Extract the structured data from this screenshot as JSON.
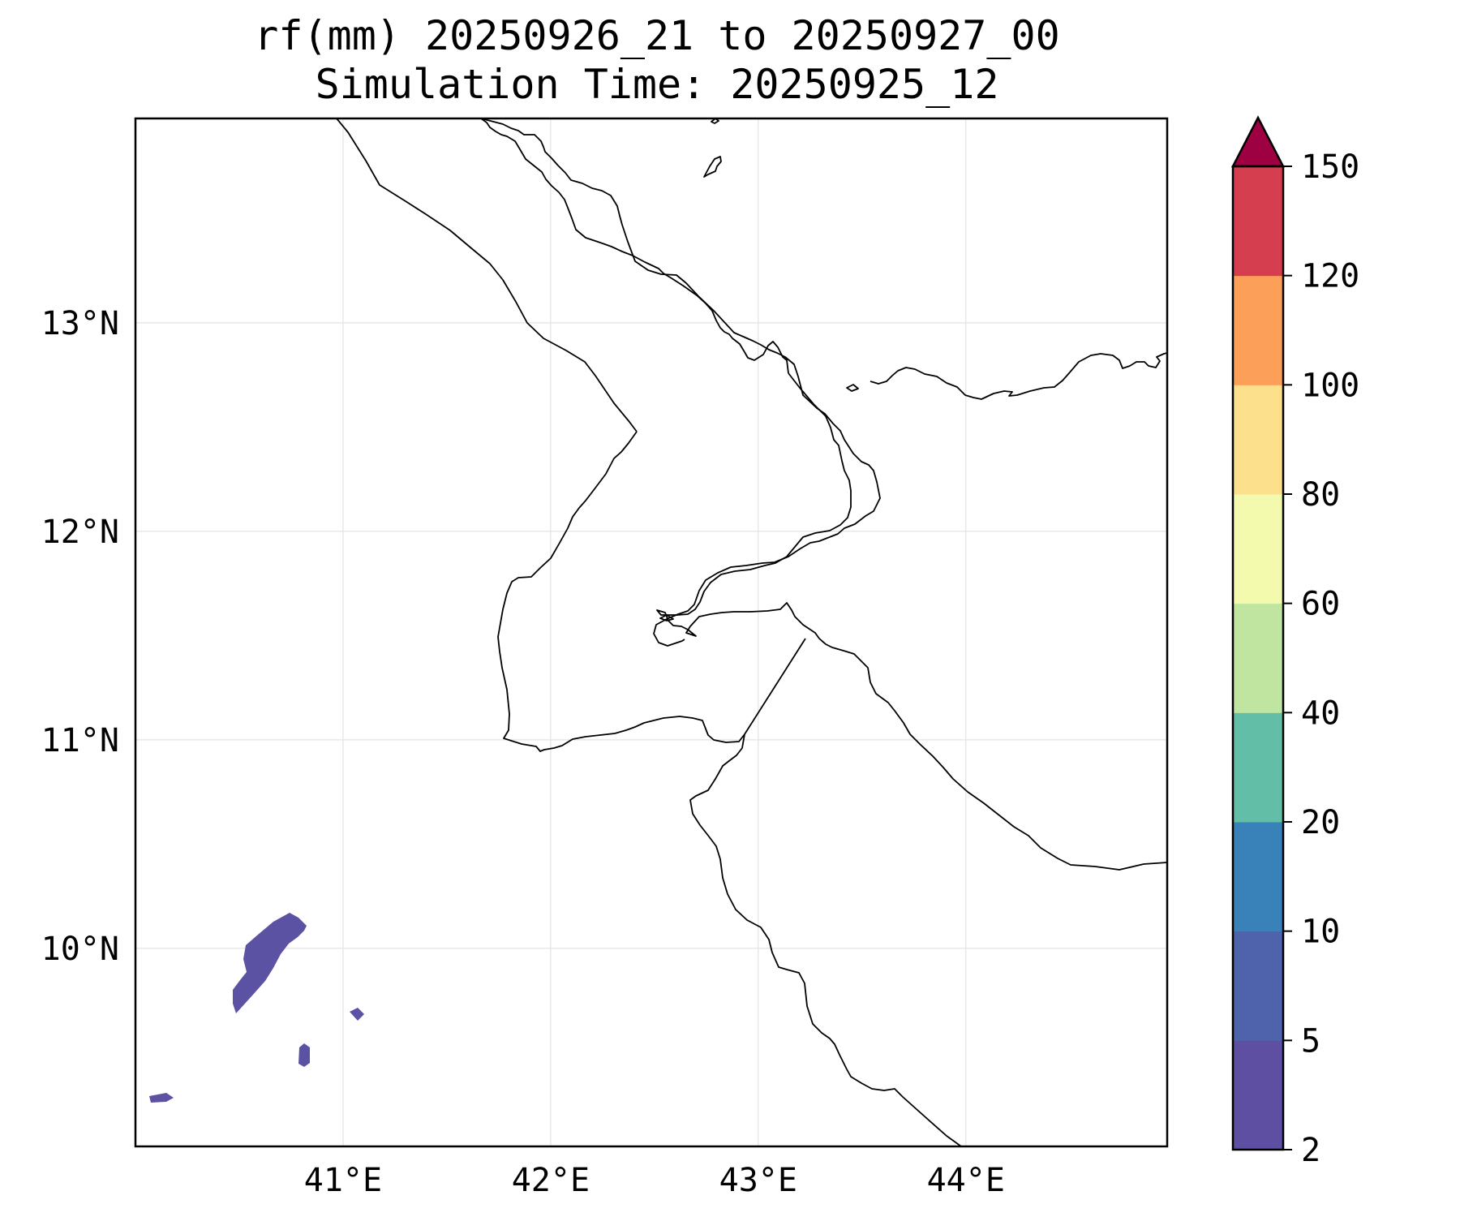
{
  "title": {
    "line1": "rf(mm) 20250926_21 to 20250927_00",
    "line2": "Simulation Time: 20250925_12"
  },
  "map": {
    "lon_range": [
      40.0,
      44.97
    ],
    "lat_range": [
      9.05,
      13.98
    ],
    "lon_ticks": [
      {
        "value": 41,
        "label": "41°E"
      },
      {
        "value": 42,
        "label": "42°E"
      },
      {
        "value": 43,
        "label": "43°E"
      },
      {
        "value": 44,
        "label": "44°E"
      }
    ],
    "lat_ticks": [
      {
        "value": 13,
        "label": "13°N"
      },
      {
        "value": 12,
        "label": "12°N"
      },
      {
        "value": 11,
        "label": "11°N"
      },
      {
        "value": 10,
        "label": "10°N"
      }
    ],
    "gridlines": true,
    "rain_color": "#5b52a3"
  },
  "colorbar": {
    "levels": [
      2,
      5,
      10,
      20,
      40,
      60,
      80,
      100,
      120,
      150
    ],
    "labels": [
      "2",
      "5",
      "10",
      "20",
      "40",
      "60",
      "80",
      "100",
      "120",
      "150"
    ],
    "colors": [
      "#5e4fa2",
      "#4f63ad",
      "#3881b9",
      "#62bea6",
      "#bfe5a0",
      "#f4faad",
      "#fde08b",
      "#fb9f59",
      "#d53e4f"
    ],
    "extend_color": "#9e0142",
    "extend": "max"
  }
}
